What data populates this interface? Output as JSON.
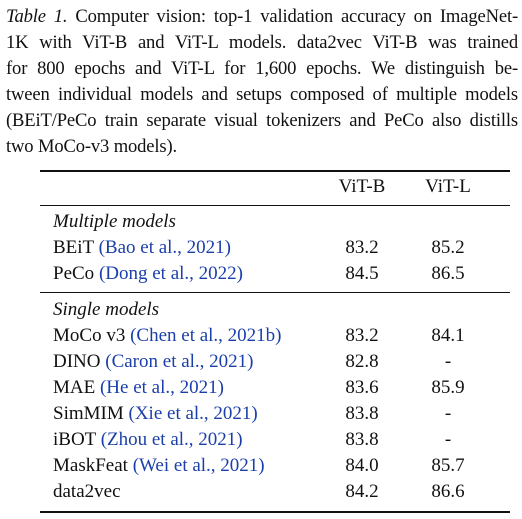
{
  "caption": {
    "label": "Table 1.",
    "lines": [
      " Computer vision: top-1 validation accuracy on ImageNet-",
      "1K with ViT-B and ViT-L models. data2vec ViT-B was trained",
      "for 800 epochs and ViT-L for 1,600 epochs. We distinguish be-",
      "tween individual models and setups composed of multiple models",
      "(BEiT/PeCo train separate visual tokenizers and PeCo also distills",
      "two MoCo-v3 models)."
    ]
  },
  "table": {
    "columns": [
      "ViT-B",
      "ViT-L"
    ],
    "sections": [
      {
        "title": "Multiple models",
        "rows": [
          {
            "name": "BEiT",
            "cite": "(Bao et al., 2021)",
            "vitb": "83.2",
            "vitl": "85.2"
          },
          {
            "name": "PeCo",
            "cite": "(Dong et al., 2022)",
            "vitb": "84.5",
            "vitl": "86.5"
          }
        ]
      },
      {
        "title": "Single models",
        "rows": [
          {
            "name": "MoCo v3",
            "cite": "(Chen et al., 2021b)",
            "vitb": "83.2",
            "vitl": "84.1"
          },
          {
            "name": "DINO",
            "cite": "(Caron et al., 2021)",
            "vitb": "82.8",
            "vitl": "-"
          },
          {
            "name": "MAE",
            "cite": "(He et al., 2021)",
            "vitb": "83.6",
            "vitl": "85.9"
          },
          {
            "name": "SimMIM",
            "cite": "(Xie et al., 2021)",
            "vitb": "83.8",
            "vitl": "-"
          },
          {
            "name": "iBOT",
            "cite": "(Zhou et al., 2021)",
            "vitb": "83.8",
            "vitl": "-"
          },
          {
            "name": "MaskFeat",
            "cite": "(Wei et al., 2021)",
            "vitb": "84.0",
            "vitl": "85.7"
          },
          {
            "name": "data2vec",
            "cite": "",
            "vitb": "84.2",
            "vitl": "86.6"
          }
        ]
      }
    ]
  }
}
